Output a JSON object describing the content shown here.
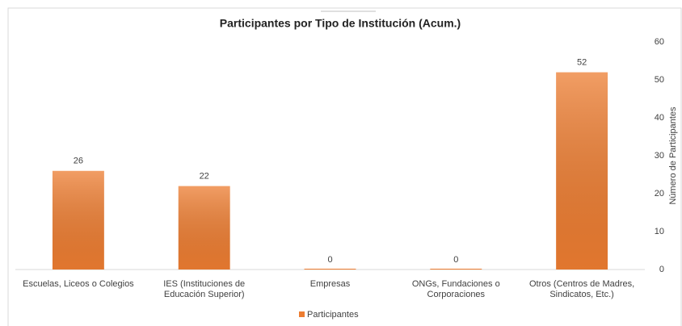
{
  "chart_data": {
    "type": "bar",
    "title": "Participantes por Tipo de Institución (Acum.)",
    "categories": [
      "Escuelas, Liceos o Colegios",
      "IES (Instituciones de Educación Superior)",
      "Empresas",
      "ONGs, Fundaciones o Corporaciones",
      "Otros (Centros de Madres, Sindicatos, Etc.)"
    ],
    "series": [
      {
        "name": "Participantes",
        "color": "#ed7d31",
        "values": [
          26,
          22,
          0,
          0,
          52
        ]
      }
    ],
    "y_axis_label": "Número de Participantes",
    "y_axis_side": "right",
    "ylim": [
      0,
      60
    ],
    "yticks": [
      0,
      10,
      20,
      30,
      40,
      50,
      60
    ],
    "grid": false,
    "legend": "bottom"
  }
}
